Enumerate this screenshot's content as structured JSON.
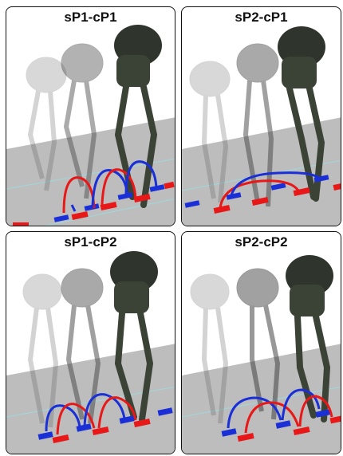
{
  "panels": [
    {
      "id": "p11",
      "title": "sP1-cP1"
    },
    {
      "id": "p21",
      "title": "sP2-cP1"
    },
    {
      "id": "p12",
      "title": "sP1-cP2"
    },
    {
      "id": "p22",
      "title": "sP2-cP2"
    }
  ],
  "colors": {
    "red": "#e81818",
    "blue": "#1a2fd6",
    "floor": "#bdbdbd",
    "robot": "#2f352c"
  }
}
